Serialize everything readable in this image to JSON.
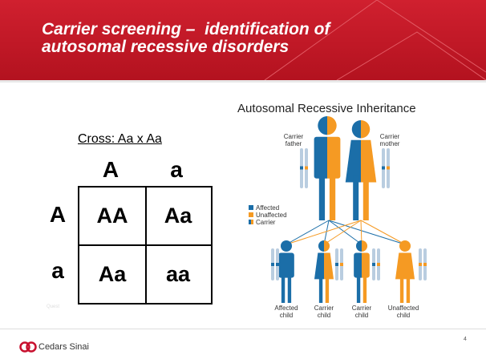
{
  "header": {
    "title_lines": [
      "Carrier screening –  identification of",
      "autosomal recessive disorders"
    ]
  },
  "cross": {
    "label": "Cross: Aa x Aa",
    "column_headers": [
      "A",
      "a"
    ],
    "row_headers": [
      "A",
      "a"
    ],
    "cells": [
      [
        "AA",
        "Aa"
      ],
      [
        "Aa",
        "aa"
      ]
    ]
  },
  "figure": {
    "title": "Autosomal Recessive Inheritance",
    "parents": [
      "Carrier father",
      "Carrier mother"
    ],
    "legend": [
      "Affected",
      "Unaffected",
      "Carrier"
    ],
    "children": [
      "Affected child",
      "Carrier child",
      "Carrier child",
      "Unaffected child"
    ]
  },
  "source": "Quest",
  "footer": {
    "logo": "Cedars Sinai",
    "page": "4"
  }
}
